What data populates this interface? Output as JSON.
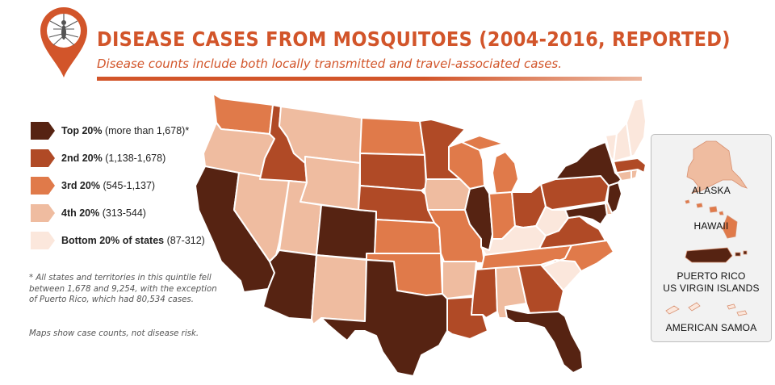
{
  "header": {
    "title": "DISEASE CASES FROM MOSQUITOES (2004-2016, REPORTED)",
    "subtitle": "Disease counts include both locally transmitted and travel-associated cases."
  },
  "colors": {
    "top": "#562312",
    "second": "#b04a26",
    "third": "#e07a4a",
    "fourth": "#efbca0",
    "bottom": "#fbe7dc",
    "accent": "#d2552a"
  },
  "legend": [
    {
      "key": "top",
      "label": "Top 20%",
      "range": "(more than 1,678)*"
    },
    {
      "key": "second",
      "label": "2nd 20%",
      "range": "(1,138-1,678)"
    },
    {
      "key": "third",
      "label": "3rd 20%",
      "range": "(545-1,137)"
    },
    {
      "key": "fourth",
      "label": "4th 20%",
      "range": "(313-544)"
    },
    {
      "key": "bottom",
      "label": "Bottom 20% of states",
      "range": "(87-312)"
    }
  ],
  "footnote": "* All states and territories in this quintile fell between 1,678 and 9,254, with the exception of Puerto Rico, which had 80,534 cases.",
  "risk_note": "Maps show case counts, not disease risk.",
  "states": {
    "WA": "third",
    "OR": "fourth",
    "CA": "top",
    "NV": "fourth",
    "ID": "second",
    "MT": "fourth",
    "WY": "fourth",
    "UT": "fourth",
    "AZ": "top",
    "CO": "top",
    "NM": "fourth",
    "ND": "third",
    "SD": "second",
    "NE": "second",
    "KS": "third",
    "OK": "third",
    "TX": "top",
    "MN": "second",
    "IA": "fourth",
    "MO": "third",
    "AR": "fourth",
    "LA": "second",
    "WI": "third",
    "IL": "top",
    "MI": "third",
    "IN": "third",
    "OH": "second",
    "KY": "bottom",
    "TN": "third",
    "MS": "second",
    "AL": "fourth",
    "GA": "second",
    "FL": "top",
    "SC": "bottom",
    "NC": "third",
    "VA": "second",
    "WV": "bottom",
    "PA": "second",
    "NY": "top",
    "NJ": "top",
    "MD": "top",
    "DE": "fourth",
    "CT": "fourth",
    "RI": "fourth",
    "MA": "second",
    "VT": "bottom",
    "NH": "bottom",
    "ME": "bottom"
  },
  "inset": {
    "alaska": {
      "label": "ALASKA",
      "level": "fourth"
    },
    "hawaii": {
      "label": "HAWAII",
      "level": "third"
    },
    "puerto_rico": {
      "label_line1": "PUERTO RICO",
      "label_line2": "US VIRGIN ISLANDS",
      "level": "top"
    },
    "american_samoa": {
      "label": "AMERICAN SAMOA",
      "level": "bottom"
    }
  }
}
